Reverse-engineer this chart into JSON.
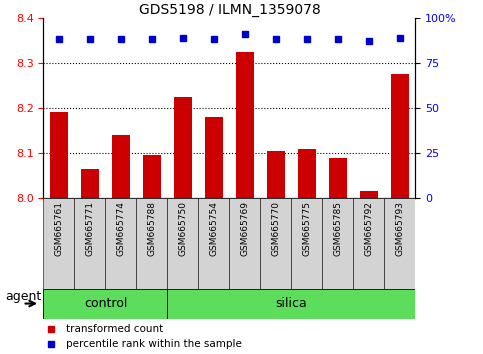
{
  "title": "GDS5198 / ILMN_1359078",
  "samples": [
    "GSM665761",
    "GSM665771",
    "GSM665774",
    "GSM665788",
    "GSM665750",
    "GSM665754",
    "GSM665769",
    "GSM665770",
    "GSM665775",
    "GSM665785",
    "GSM665792",
    "GSM665793"
  ],
  "transformed_counts": [
    8.19,
    8.065,
    8.14,
    8.095,
    8.225,
    8.18,
    8.325,
    8.105,
    8.11,
    8.09,
    8.015,
    8.275
  ],
  "percentile_ranks": [
    88,
    88,
    88,
    88,
    89,
    88,
    91,
    88,
    88,
    88,
    87,
    89
  ],
  "groups": [
    "control",
    "control",
    "control",
    "control",
    "silica",
    "silica",
    "silica",
    "silica",
    "silica",
    "silica",
    "silica",
    "silica"
  ],
  "control_count": 4,
  "silica_count": 8,
  "ylim_left": [
    8.0,
    8.4
  ],
  "ylim_right": [
    0,
    100
  ],
  "yticks_left": [
    8.0,
    8.1,
    8.2,
    8.3,
    8.4
  ],
  "yticks_right": [
    0,
    25,
    50,
    75,
    100
  ],
  "grid_lines": [
    8.1,
    8.2,
    8.3
  ],
  "bar_color": "#cc0000",
  "dot_color": "#0000cc",
  "group_bg": "#5cdd5c",
  "tick_bg": "#d3d3d3",
  "legend_bar_label": "transformed count",
  "legend_dot_label": "percentile rank within the sample",
  "agent_label": "agent",
  "control_label": "control",
  "silica_label": "silica",
  "title_fontsize": 10,
  "tick_fontsize": 8,
  "label_fontsize": 9,
  "sample_fontsize": 6.5
}
